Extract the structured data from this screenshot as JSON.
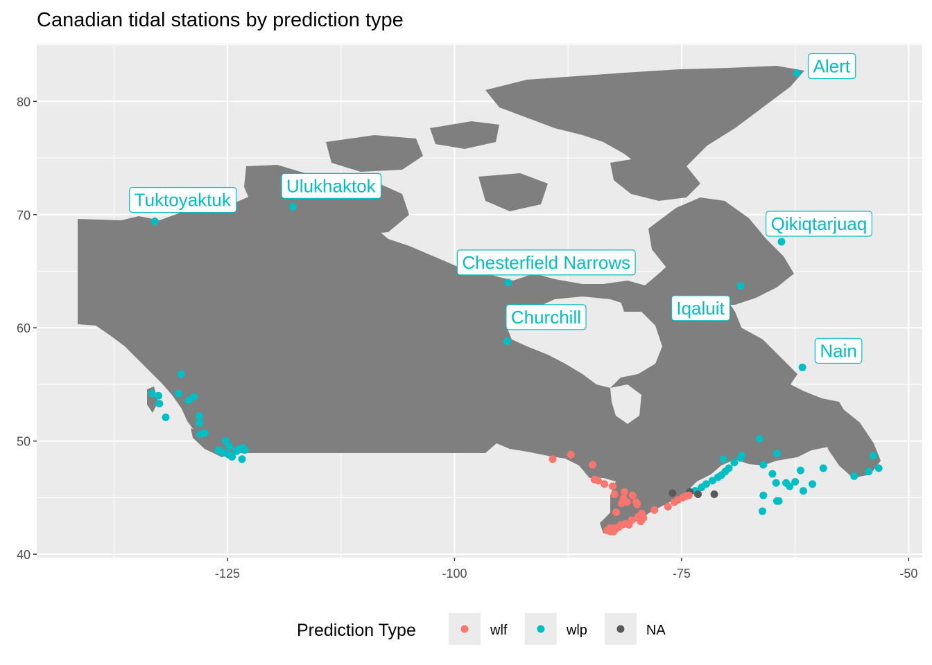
{
  "title": "Canadian tidal stations by prediction type",
  "colors": {
    "wlf": "#F8766D",
    "wlp": "#00BFC4",
    "na": "#595959",
    "land": "#7F7F7F",
    "panel": "#EBEBEB",
    "grid": "#FFFFFF"
  },
  "legend": {
    "title": "Prediction Type",
    "position": "bottom",
    "items": [
      {
        "key": "wlf",
        "label": "wlf"
      },
      {
        "key": "wlp",
        "label": "wlp"
      },
      {
        "key": "na",
        "label": "NA"
      }
    ]
  },
  "chart_data": {
    "type": "scatter",
    "xlim": [
      -146,
      -48.5
    ],
    "ylim": [
      39.7,
      85.1
    ],
    "x_ticks": [
      -125,
      -100,
      -75,
      -50
    ],
    "x_tick_labels": [
      "-125",
      "-100",
      "-75",
      "-50"
    ],
    "y_ticks": [
      40,
      50,
      60,
      70,
      80
    ],
    "y_tick_labels": [
      "40",
      "50",
      "60",
      "70",
      "80"
    ],
    "grid": true,
    "xlabel": "",
    "ylabel": "",
    "labels": [
      {
        "text": "Alert",
        "lon": -62.3,
        "lat": 82.5
      },
      {
        "text": "Tuktoyaktuk",
        "lon": -133.0,
        "lat": 69.4
      },
      {
        "text": "Ulukhaktok",
        "lon": -117.8,
        "lat": 70.7
      },
      {
        "text": "Qikiqtarjuaq",
        "lon": -64.0,
        "lat": 67.6
      },
      {
        "text": "Chesterfield Narrows",
        "lon": -94.1,
        "lat": 64.0
      },
      {
        "text": "Iqaluit",
        "lon": -68.5,
        "lat": 63.7
      },
      {
        "text": "Churchill",
        "lon": -94.2,
        "lat": 58.8
      },
      {
        "text": "Nain",
        "lon": -61.7,
        "lat": 56.5
      }
    ],
    "series": [
      {
        "name": "wlp",
        "key": "wlp",
        "points": [
          [
            -62.3,
            82.5
          ],
          [
            -133.0,
            69.4
          ],
          [
            -117.8,
            70.7
          ],
          [
            -64.0,
            67.6
          ],
          [
            -94.1,
            64.0
          ],
          [
            -68.5,
            63.7
          ],
          [
            -94.2,
            58.8
          ],
          [
            -61.7,
            56.5
          ],
          [
            -133.3,
            54.2
          ],
          [
            -132.6,
            54.0
          ],
          [
            -132.5,
            53.3
          ],
          [
            -131.8,
            52.1
          ],
          [
            -130.4,
            54.2
          ],
          [
            -130.1,
            55.9
          ],
          [
            -129.3,
            53.6
          ],
          [
            -128.7,
            53.9
          ],
          [
            -128.1,
            52.2
          ],
          [
            -128.1,
            51.6
          ],
          [
            -128.0,
            50.6
          ],
          [
            -127.5,
            50.7
          ],
          [
            -125.2,
            50.0
          ],
          [
            -126.0,
            49.2
          ],
          [
            -125.5,
            49.0
          ],
          [
            -124.9,
            48.8
          ],
          [
            -124.5,
            48.6
          ],
          [
            -124.0,
            49.1
          ],
          [
            -123.7,
            49.3
          ],
          [
            -123.4,
            48.4
          ],
          [
            -123.3,
            49.4
          ],
          [
            -123.1,
            49.2
          ],
          [
            -124.8,
            49.5
          ],
          [
            -71.0,
            46.8
          ],
          [
            -70.6,
            47.0
          ],
          [
            -70.2,
            47.3
          ],
          [
            -69.8,
            47.6
          ],
          [
            -71.6,
            46.5
          ],
          [
            -72.3,
            46.2
          ],
          [
            -72.8,
            45.9
          ],
          [
            -73.5,
            45.6
          ],
          [
            -70.4,
            48.4
          ],
          [
            -69.2,
            48.1
          ],
          [
            -68.5,
            48.5
          ],
          [
            -68.4,
            48.7
          ],
          [
            -66.4,
            50.2
          ],
          [
            -64.5,
            48.9
          ],
          [
            -66.0,
            47.9
          ],
          [
            -65.0,
            47.1
          ],
          [
            -64.6,
            46.3
          ],
          [
            -63.5,
            46.3
          ],
          [
            -63.1,
            46.0
          ],
          [
            -62.5,
            46.4
          ],
          [
            -61.9,
            47.4
          ],
          [
            -61.6,
            45.6
          ],
          [
            -60.6,
            46.2
          ],
          [
            -59.4,
            47.6
          ],
          [
            -56.0,
            46.9
          ],
          [
            -54.4,
            47.3
          ],
          [
            -53.9,
            48.7
          ],
          [
            -53.3,
            47.6
          ],
          [
            -66.0,
            45.2
          ],
          [
            -66.1,
            43.8
          ],
          [
            -64.5,
            44.7
          ],
          [
            -64.3,
            44.7
          ]
        ]
      },
      {
        "name": "wlf",
        "key": "wlf",
        "points": [
          [
            -89.2,
            48.4
          ],
          [
            -87.2,
            48.8
          ],
          [
            -84.8,
            47.9
          ],
          [
            -84.6,
            46.6
          ],
          [
            -84.2,
            46.5
          ],
          [
            -83.5,
            46.2
          ],
          [
            -82.6,
            46.0
          ],
          [
            -82.4,
            45.3
          ],
          [
            -82.2,
            43.7
          ],
          [
            -81.3,
            45.5
          ],
          [
            -81.4,
            44.9
          ],
          [
            -81.6,
            44.5
          ],
          [
            -81.0,
            44.6
          ],
          [
            -80.4,
            45.2
          ],
          [
            -80.0,
            44.6
          ],
          [
            -79.9,
            44.4
          ],
          [
            -79.4,
            43.6
          ],
          [
            -79.8,
            43.3
          ],
          [
            -80.5,
            43.0
          ],
          [
            -81.7,
            42.6
          ],
          [
            -82.4,
            42.3
          ],
          [
            -82.9,
            42.3
          ],
          [
            -83.2,
            42.1
          ],
          [
            -82.8,
            42.0
          ],
          [
            -82.5,
            42.0
          ],
          [
            -82.3,
            42.2
          ],
          [
            -81.9,
            42.4
          ],
          [
            -81.2,
            42.7
          ],
          [
            -80.8,
            42.6
          ],
          [
            -79.5,
            42.9
          ],
          [
            -79.2,
            43.2
          ],
          [
            -78.0,
            43.9
          ],
          [
            -76.5,
            44.2
          ],
          [
            -75.8,
            44.6
          ],
          [
            -75.4,
            44.8
          ],
          [
            -74.9,
            45.0
          ],
          [
            -74.2,
            45.2
          ],
          [
            -74.6,
            45.1
          ]
        ]
      },
      {
        "name": "NA",
        "key": "na",
        "points": [
          [
            -76.0,
            45.4
          ],
          [
            -74.1,
            45.5
          ],
          [
            -73.2,
            45.3
          ],
          [
            -71.4,
            45.3
          ]
        ]
      }
    ]
  }
}
